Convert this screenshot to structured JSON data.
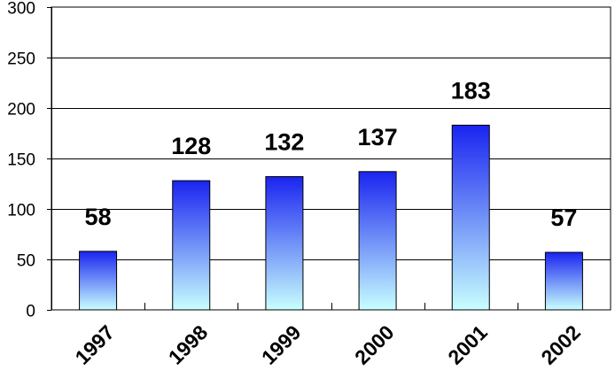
{
  "chart_data": {
    "type": "bar",
    "categories": [
      "1997",
      "1998",
      "1999",
      "2000",
      "2001",
      "2002"
    ],
    "values": [
      58,
      128,
      132,
      137,
      183,
      57
    ],
    "ylim": [
      0,
      300
    ],
    "yticks": [
      0,
      50,
      100,
      150,
      200,
      250,
      300
    ],
    "grid": true,
    "legend": "none",
    "bar_gradient": {
      "top": "#1a24f0",
      "bottom": "#c8ffff"
    }
  }
}
